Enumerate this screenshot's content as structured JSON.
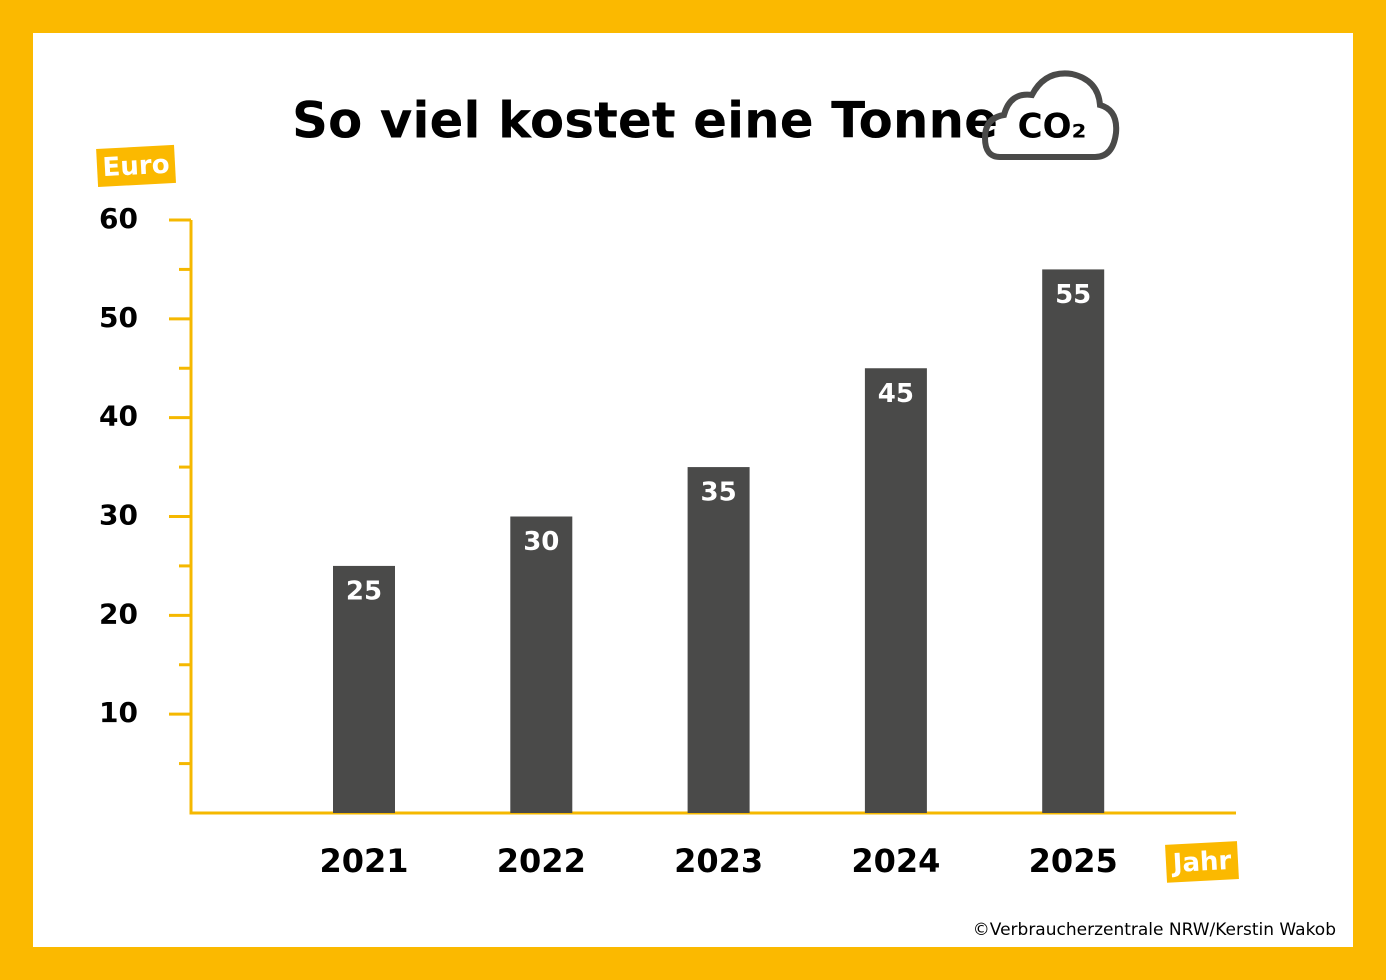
{
  "chart_data": {
    "type": "bar",
    "title": "So viel kostet eine Tonne",
    "title_icon_text": "CO₂",
    "y_label": "Euro",
    "x_label": "Jahr",
    "credit": "©Verbraucherzentrale NRW/Kerstin Wakob",
    "categories": [
      "2021",
      "2022",
      "2023",
      "2024",
      "2025"
    ],
    "values": [
      25,
      30,
      35,
      45,
      55
    ],
    "color": "#4a4a49",
    "axis_color": "#f5b800",
    "ylim": [
      0,
      60
    ],
    "yticks": [
      10,
      20,
      30,
      40,
      50,
      60
    ],
    "minor_yticks": [
      5,
      15,
      25,
      35,
      45,
      55
    ],
    "grid": false
  }
}
